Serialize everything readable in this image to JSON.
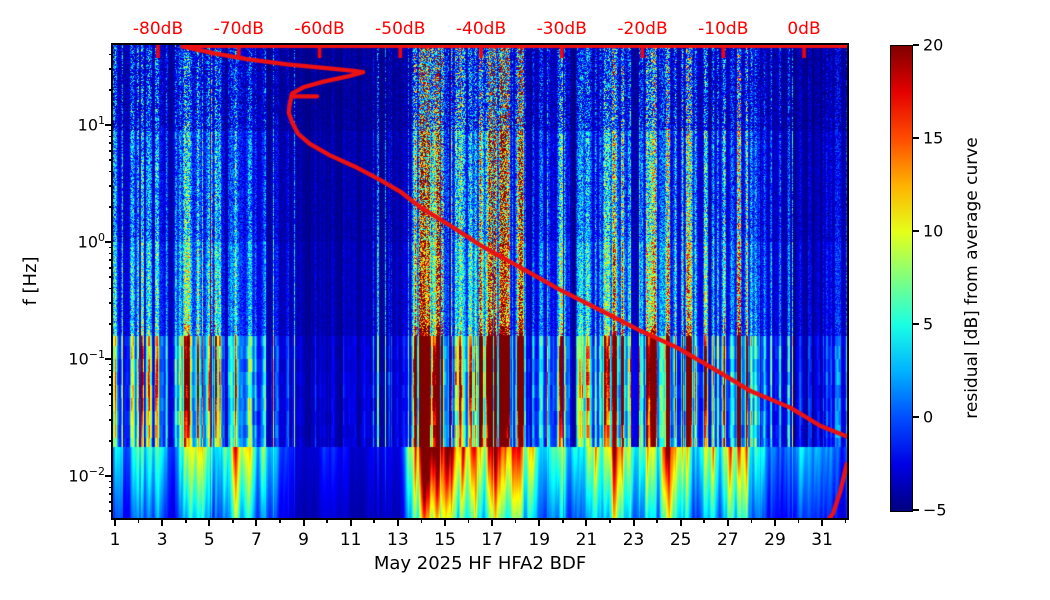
{
  "figure": {
    "background": "#ffffff",
    "accent_red": "#ff0000"
  },
  "chart_data": {
    "type": "heatmap",
    "title": "",
    "xlabel": "May 2025 HF HFA2  BDF",
    "ylabel": "f [Hz]",
    "x_axis": {
      "unit": "day of month",
      "major_ticks": [
        1,
        3,
        5,
        7,
        9,
        11,
        13,
        15,
        17,
        19,
        21,
        23,
        25,
        27,
        29,
        31
      ],
      "minor_ticks": [
        2,
        4,
        6,
        8,
        10,
        12,
        14,
        16,
        18,
        20,
        22,
        24,
        26,
        28,
        30,
        32
      ],
      "range_days": [
        0.92,
        32.15
      ]
    },
    "y_axis": {
      "scale": "log",
      "unit": "Hz",
      "major_ticks_hz": [
        10,
        1,
        0.1,
        0.01
      ],
      "tick_labels": [
        {
          "base": "10",
          "exp": "1"
        },
        {
          "base": "10",
          "exp": "0"
        },
        {
          "base": "10",
          "exp": "−1"
        },
        {
          "base": "10",
          "exp": "−2"
        }
      ],
      "range_hz": [
        0.0044,
        48
      ]
    },
    "top_axis": {
      "color": "#ff0000",
      "ticks_db": [
        -80,
        -70,
        -60,
        -50,
        -40,
        -30,
        -20,
        -10,
        0
      ],
      "tick_labels": [
        "-80dB",
        "-70dB",
        "-60dB",
        "-50dB",
        "-40dB",
        "-30dB",
        "-20dB",
        "-10dB",
        "0dB"
      ]
    },
    "colorbar": {
      "label": "residual [dB] from average curve",
      "ticks": [
        "20",
        "15",
        "10",
        "5",
        "0",
        "−5"
      ],
      "tick_values": [
        20,
        15,
        10,
        5,
        0,
        -5
      ],
      "range": [
        -5,
        20
      ],
      "colormap": "jet"
    },
    "heatmap": {
      "description": "Spectrogram of residual power [dB] vs time (days of May 2025) and frequency (Hz, log scale). Vertical bright stripes mark geomagnetically active days; dark navy columns are quiet periods; dark-red cores appear near 0.03-0.15 Hz on the strongest days.",
      "time_resolution_days": 0.5,
      "activity_half_day": [
        0.3,
        0.35,
        0.45,
        0.4,
        0.35,
        0.3,
        0.85,
        0.8,
        0.45,
        0.4,
        0.85,
        0.75,
        0.55,
        0.45,
        0.3,
        0.2,
        0.1,
        0.1,
        0.18,
        0.14,
        0.1,
        0.1,
        0.15,
        0.12,
        0.12,
        0.55,
        0.95,
        0.92,
        1.0,
        0.95,
        0.85,
        0.8,
        0.92,
        0.88,
        0.95,
        0.85,
        0.45,
        0.4,
        0.4,
        0.42,
        0.55,
        0.6,
        0.9,
        0.8,
        0.4,
        0.5,
        0.6,
        0.88,
        0.6,
        0.45,
        0.5,
        0.6,
        0.88,
        0.7,
        0.5,
        0.4,
        0.22,
        0.25,
        0.4,
        0.3,
        0.3,
        0.25,
        0.22,
        0.2
      ]
    },
    "average_curve": {
      "color": "#ee1111",
      "meaning": "average spectrum curve plotted against the red top dB axis",
      "points_db_hz": [
        [
          -77,
          47
        ],
        [
          -73,
          41
        ],
        [
          -69,
          36.5
        ],
        [
          -64,
          33
        ],
        [
          -59.5,
          30.8
        ],
        [
          -56,
          29.2
        ],
        [
          -54.6,
          28.3
        ],
        [
          -56.5,
          26
        ],
        [
          -59.5,
          23.5
        ],
        [
          -62,
          21
        ],
        [
          -63.4,
          18.5
        ],
        [
          -63.7,
          15
        ],
        [
          -63.8,
          12.7
        ],
        [
          -63.4,
          10.6
        ],
        [
          -62.7,
          8.5
        ],
        [
          -61.2,
          6.9
        ],
        [
          -58.7,
          5.5
        ],
        [
          -55.6,
          4.4
        ],
        [
          -52.5,
          3.4
        ],
        [
          -50.0,
          2.7
        ],
        [
          -47.6,
          2.0
        ],
        [
          -43.5,
          1.34
        ],
        [
          -40.1,
          0.94
        ],
        [
          -35.2,
          0.61
        ],
        [
          -30.2,
          0.39
        ],
        [
          -24.4,
          0.245
        ],
        [
          -20.3,
          0.175
        ],
        [
          -15.7,
          0.125
        ],
        [
          -10.4,
          0.0765
        ],
        [
          -6.7,
          0.0536
        ],
        [
          -1.7,
          0.0384
        ],
        [
          2.0,
          0.0269
        ],
        [
          5.1,
          0.0221
        ],
        [
          8.5,
          0.018
        ],
        [
          9.5,
          0.015
        ],
        [
          5.3,
          0.0127
        ],
        [
          4.5,
          0.0074
        ],
        [
          3.6,
          0.0048
        ],
        [
          2.9,
          0.0041
        ]
      ],
      "spur_db_hz": [
        [
          -63.5,
          17.6
        ],
        [
          -60.3,
          17.6
        ]
      ],
      "top_edge_line": true
    }
  }
}
